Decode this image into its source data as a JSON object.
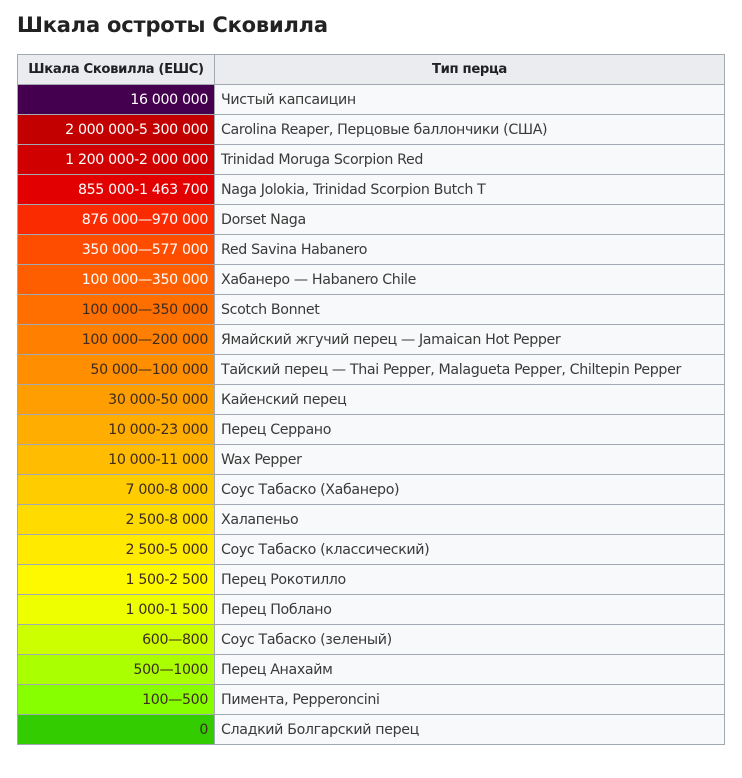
{
  "page": {
    "title": "Шкала остроты Сковилла"
  },
  "table": {
    "headers": {
      "scale": "Шкала Сковилла (ЕШС)",
      "type": "Тип перца"
    },
    "rows": [
      {
        "scale": "16 000 000",
        "type": "Чистый капсаицин",
        "color": "#44004f",
        "text_color": "#ffffff"
      },
      {
        "scale": "2 000 000-5 300 000",
        "type": "Carolina Reaper, Перцовые баллончики (США)",
        "color": "#c20000",
        "text_color": "#ffffff"
      },
      {
        "scale": "1 200 000-2 000 000",
        "type": "Trinidad Moruga Scorpion Red",
        "color": "#d10000",
        "text_color": "#ffffff"
      },
      {
        "scale": "855 000-1 463 700",
        "type": "Naga Jolokia, Trinidad Scorpion Butch T",
        "color": "#e20000",
        "text_color": "#ffffff"
      },
      {
        "scale": "876 000—970 000",
        "type": "Dorset Naga",
        "color": "#fa2b00",
        "text_color": "#ffffff"
      },
      {
        "scale": "350 000—577 000",
        "type": "Red Savina Habanero",
        "color": "#ff4d00",
        "text_color": "#ffffff"
      },
      {
        "scale": "100 000—350 000",
        "type": "Хабанеро — Habanero Chile",
        "color": "#ff5e00",
        "text_color": "#ffffff"
      },
      {
        "scale": "100 000—350 000",
        "type": "Scotch Bonnet",
        "color": "#ff6f00",
        "text_color": "#3d2b1f"
      },
      {
        "scale": "100 000—200 000",
        "type": "Ямайский жгучий перец — Jamaican Hot Pepper",
        "color": "#ff7f00",
        "text_color": "#3d2b1f"
      },
      {
        "scale": "50 000—100 000",
        "type": "Тайский перец — Thai Pepper, Malagueta Pepper, Chiltepin Pepper",
        "color": "#ff8e00",
        "text_color": "#3d2b1f"
      },
      {
        "scale": "30 000-50 000",
        "type": "Кайенский перец",
        "color": "#ff9e00",
        "text_color": "#3d2b1f"
      },
      {
        "scale": "10 000-23 000",
        "type": "Перец Серрано",
        "color": "#ffad00",
        "text_color": "#3d2b1f"
      },
      {
        "scale": "10 000-11 000",
        "type": "Wax Pepper",
        "color": "#ffbc00",
        "text_color": "#3d2b1f"
      },
      {
        "scale": "7 000-8 000",
        "type": "Соус Табаско (Хабанеро)",
        "color": "#ffcc00",
        "text_color": "#3d2b1f"
      },
      {
        "scale": "2 500-8 000",
        "type": "Халапеньо",
        "color": "#ffdb00",
        "text_color": "#3d2b1f"
      },
      {
        "scale": "2 500-5 000",
        "type": "Соус Табаско (классический)",
        "color": "#ffea00",
        "text_color": "#3d2b1f"
      },
      {
        "scale": "1 500-2 500",
        "type": "Перец Рокотилло",
        "color": "#fff900",
        "text_color": "#3d2b1f"
      },
      {
        "scale": "1 000-1 500",
        "type": "Перец Поблано",
        "color": "#eeff00",
        "text_color": "#3d2b1f"
      },
      {
        "scale": "600—800",
        "type": "Соус Табаско (зеленый)",
        "color": "#ccff00",
        "text_color": "#3d2b1f"
      },
      {
        "scale": "500—1000",
        "type": "Перец Анахайм",
        "color": "#aaff00",
        "text_color": "#3d2b1f"
      },
      {
        "scale": "100—500",
        "type": "Пимента, Pepperoncini",
        "color": "#88ff00",
        "text_color": "#3d2b1f"
      },
      {
        "scale": "0",
        "type": "Сладкий Болгарский перец",
        "color": "#33cc00",
        "text_color": "#3d2b1f"
      }
    ]
  }
}
